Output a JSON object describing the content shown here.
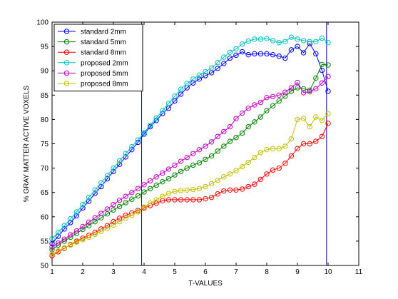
{
  "chart_data": {
    "type": "line",
    "title": "",
    "xlabel": "T-VALUES",
    "ylabel": "% GRAY MATTER ACTIVE VOXELS",
    "xlim": [
      1,
      11
    ],
    "ylim": [
      50,
      100
    ],
    "xticks": [
      1,
      2,
      3,
      4,
      5,
      6,
      7,
      8,
      9,
      10,
      11
    ],
    "yticks": [
      50,
      55,
      60,
      65,
      70,
      75,
      80,
      85,
      90,
      95,
      100
    ],
    "grid": false,
    "legend_position": "top-left",
    "vertical_lines": [
      3.92,
      9.95
    ],
    "vertical_line_color": "#0000aa",
    "x": [
      1.0,
      1.2,
      1.4,
      1.6,
      1.8,
      2.0,
      2.2,
      2.4,
      2.6,
      2.8,
      3.0,
      3.2,
      3.4,
      3.6,
      3.8,
      4.0,
      4.2,
      4.4,
      4.6,
      4.8,
      5.0,
      5.2,
      5.4,
      5.6,
      5.8,
      6.0,
      6.2,
      6.4,
      6.6,
      6.8,
      7.0,
      7.2,
      7.4,
      7.6,
      7.8,
      8.0,
      8.2,
      8.4,
      8.6,
      8.8,
      9.0,
      9.2,
      9.4,
      9.6,
      9.8,
      10.0
    ],
    "series": [
      {
        "name": "standard 2mm",
        "color": "#0000ff",
        "values": [
          54.5,
          56.0,
          57.5,
          58.8,
          60.2,
          61.8,
          63.2,
          64.8,
          66.2,
          67.8,
          69.3,
          70.8,
          72.3,
          73.8,
          75.3,
          77.0,
          78.5,
          79.8,
          81.2,
          82.3,
          83.8,
          85.2,
          86.5,
          87.5,
          88.3,
          89.0,
          89.6,
          90.5,
          91.5,
          92.6,
          93.2,
          93.9,
          93.3,
          93.5,
          93.5,
          93.5,
          93.3,
          93.0,
          92.6,
          94.3,
          95.0,
          93.7,
          95.6,
          93.5,
          90.1,
          85.8
        ]
      },
      {
        "name": "standard 5mm",
        "color": "#008000",
        "values": [
          53.2,
          54.2,
          55.0,
          55.8,
          56.6,
          57.4,
          58.2,
          59.0,
          59.8,
          60.6,
          61.4,
          62.1,
          62.9,
          63.6,
          64.3,
          65.1,
          65.8,
          66.5,
          67.2,
          67.8,
          68.6,
          69.3,
          70.0,
          70.6,
          71.1,
          71.8,
          72.5,
          73.5,
          74.5,
          75.5,
          76.3,
          77.2,
          78.5,
          79.5,
          80.5,
          81.8,
          82.8,
          83.8,
          84.8,
          85.8,
          86.5,
          86.3,
          86.0,
          88.5,
          91.3,
          91.2
        ]
      },
      {
        "name": "standard 8mm",
        "color": "#ff0000",
        "values": [
          52.0,
          52.8,
          53.5,
          54.3,
          55.0,
          55.6,
          56.2,
          56.8,
          57.5,
          58.2,
          59.0,
          59.7,
          60.3,
          60.8,
          61.3,
          61.8,
          62.3,
          62.8,
          63.3,
          63.5,
          63.5,
          63.5,
          63.5,
          63.5,
          63.5,
          63.7,
          64.0,
          64.7,
          65.3,
          65.5,
          65.5,
          65.7,
          66.2,
          66.7,
          67.7,
          68.8,
          69.6,
          70.0,
          71.0,
          72.5,
          74.0,
          75.0,
          75.0,
          75.5,
          76.5,
          79.2
        ]
      },
      {
        "name": "proposed 2mm",
        "color": "#00bfbf",
        "values": [
          55.5,
          56.8,
          58.2,
          59.6,
          61.0,
          62.5,
          64.0,
          65.5,
          67.0,
          68.5,
          70.0,
          71.5,
          73.0,
          74.4,
          75.8,
          77.3,
          78.8,
          80.3,
          81.8,
          83.3,
          84.8,
          86.2,
          87.4,
          88.3,
          89.1,
          89.8,
          90.6,
          91.7,
          92.8,
          93.8,
          94.5,
          95.5,
          96.1,
          96.5,
          96.5,
          96.6,
          96.2,
          95.8,
          96.0,
          96.9,
          96.5,
          96.2,
          96.0,
          96.0,
          96.7,
          95.8
        ]
      },
      {
        "name": "proposed 5mm",
        "color": "#bf00bf",
        "values": [
          53.8,
          54.6,
          55.4,
          56.3,
          57.1,
          58.0,
          58.9,
          59.8,
          60.7,
          61.6,
          62.5,
          63.4,
          64.2,
          65.0,
          65.8,
          66.6,
          67.4,
          68.2,
          69.0,
          69.8,
          70.6,
          71.4,
          72.2,
          73.0,
          73.8,
          74.5,
          75.4,
          76.5,
          77.5,
          78.5,
          80.2,
          81.3,
          82.3,
          83.0,
          83.5,
          84.5,
          84.7,
          85.0,
          85.6,
          86.5,
          87.6,
          85.5,
          85.7,
          86.3,
          87.5,
          88.8
        ]
      },
      {
        "name": "proposed 8mm",
        "color": "#bfbf00",
        "values": [
          52.3,
          53.0,
          53.6,
          54.2,
          54.8,
          55.3,
          55.8,
          56.4,
          57.0,
          57.6,
          58.3,
          59.0,
          59.7,
          60.3,
          61.0,
          62.0,
          62.8,
          63.5,
          64.2,
          64.8,
          65.2,
          65.4,
          65.5,
          65.6,
          65.8,
          66.2,
          66.8,
          67.5,
          68.2,
          68.8,
          69.5,
          70.3,
          71.2,
          72.2,
          73.2,
          73.8,
          74.0,
          74.0,
          74.5,
          76.0,
          80.0,
          80.2,
          78.5,
          80.5,
          79.8,
          81.2
        ]
      }
    ]
  }
}
